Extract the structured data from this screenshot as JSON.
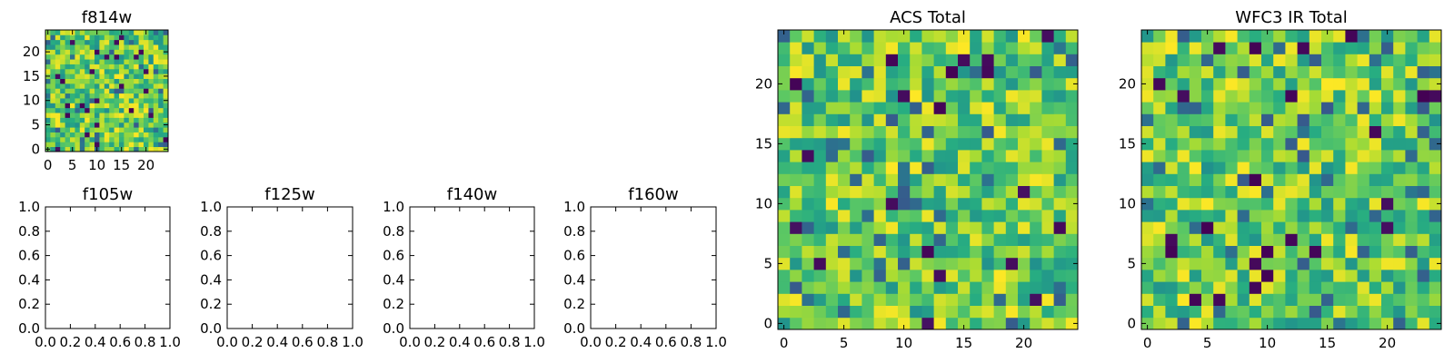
{
  "chart_data": [
    {
      "type": "heatmap",
      "title": "f814w",
      "grid_size": 25,
      "xlim": [
        -0.5,
        24.5
      ],
      "ylim": [
        -0.5,
        24.5
      ],
      "xticks": [
        0,
        5,
        10,
        15,
        20
      ],
      "yticks": [
        0,
        5,
        10,
        15,
        20
      ],
      "colormap": "viridis",
      "value_range": [
        0,
        1
      ],
      "seed": 814,
      "grid": false
    },
    {
      "type": "heatmap",
      "title": "f105w",
      "empty": true,
      "xlim": [
        0,
        1
      ],
      "ylim": [
        0,
        1
      ],
      "xticks": [
        "0.0",
        "0.2",
        "0.4",
        "0.6",
        "0.8",
        "1.0"
      ],
      "yticks": [
        "0.0",
        "0.2",
        "0.4",
        "0.6",
        "0.8",
        "1.0"
      ]
    },
    {
      "type": "heatmap",
      "title": "f125w",
      "empty": true,
      "xlim": [
        0,
        1
      ],
      "ylim": [
        0,
        1
      ],
      "xticks": [
        "0.0",
        "0.2",
        "0.4",
        "0.6",
        "0.8",
        "1.0"
      ],
      "yticks": [
        "0.0",
        "0.2",
        "0.4",
        "0.6",
        "0.8",
        "1.0"
      ]
    },
    {
      "type": "heatmap",
      "title": "f140w",
      "empty": true,
      "xlim": [
        0,
        1
      ],
      "ylim": [
        0,
        1
      ],
      "xticks": [
        "0.0",
        "0.2",
        "0.4",
        "0.6",
        "0.8",
        "1.0"
      ],
      "yticks": [
        "0.0",
        "0.2",
        "0.4",
        "0.6",
        "0.8",
        "1.0"
      ]
    },
    {
      "type": "heatmap",
      "title": "f160w",
      "empty": true,
      "xlim": [
        0,
        1
      ],
      "ylim": [
        0,
        1
      ],
      "xticks": [
        "0.0",
        "0.2",
        "0.4",
        "0.6",
        "0.8",
        "1.0"
      ],
      "yticks": [
        "0.0",
        "0.2",
        "0.4",
        "0.6",
        "0.8",
        "1.0"
      ]
    },
    {
      "type": "heatmap",
      "title": "ACS Total",
      "grid_size": 25,
      "xlim": [
        -0.5,
        24.5
      ],
      "ylim": [
        -0.5,
        24.5
      ],
      "xticks": [
        0,
        5,
        10,
        15,
        20
      ],
      "yticks": [
        0,
        5,
        10,
        15,
        20
      ],
      "colormap": "viridis",
      "value_range": [
        0,
        1
      ],
      "seed": 2017,
      "grid": false
    },
    {
      "type": "heatmap",
      "title": "WFC3 IR Total",
      "grid_size": 25,
      "xlim": [
        -0.5,
        24.5
      ],
      "ylim": [
        -0.5,
        24.5
      ],
      "xticks": [
        0,
        5,
        10,
        15,
        20
      ],
      "yticks": [
        0,
        5,
        10,
        15,
        20
      ],
      "colormap": "viridis",
      "value_range": [
        0,
        1
      ],
      "seed": 3160,
      "grid": false
    }
  ]
}
